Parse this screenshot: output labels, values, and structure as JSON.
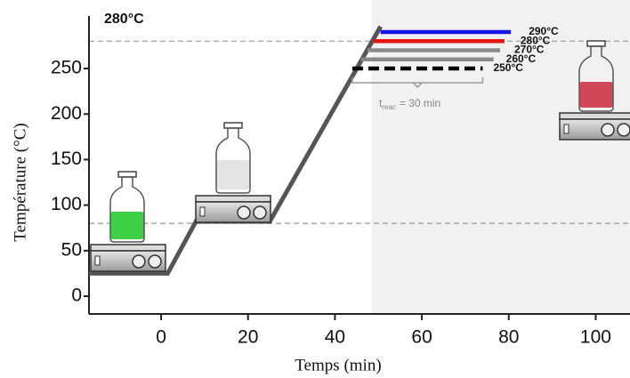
{
  "chart_data": {
    "type": "line",
    "annotation": "280°C",
    "x_label": "Temps (min)",
    "y_label": "Température (°C)",
    "xlim": [
      -16.6,
      107.9
    ],
    "ylim": [
      -19.5,
      325.2
    ],
    "xticks": [
      0,
      20,
      40,
      60,
      80,
      100
    ],
    "yticks": [
      0,
      50,
      100,
      150,
      200,
      250
    ],
    "shaded_xrange": [
      48.5,
      107.9
    ],
    "hlines": [
      280,
      80
    ],
    "profile": {
      "color": "#555555",
      "x": [
        -16.6,
        1.5,
        8,
        25,
        50.5
      ],
      "values": [
        25,
        25,
        82,
        82,
        296
      ]
    },
    "series": [
      {
        "name": "290°C",
        "color": "#1414e6",
        "dash": false,
        "x": [
          50.5,
          80.5
        ],
        "values": [
          290,
          290
        ]
      },
      {
        "name": "280°C",
        "color": "#e81414",
        "dash": false,
        "x": [
          49,
          79
        ],
        "values": [
          280,
          280
        ]
      },
      {
        "name": "270°C",
        "color": "#8a8a8a",
        "dash": false,
        "x": [
          47.5,
          78
        ],
        "values": [
          270,
          270
        ]
      },
      {
        "name": "260°C",
        "color": "#8a8a8a",
        "dash": false,
        "x": [
          46,
          76.5
        ],
        "values": [
          260,
          260
        ]
      },
      {
        "name": "250°C",
        "color": "#000000",
        "dash": true,
        "x": [
          44,
          74
        ],
        "values": [
          250,
          250
        ]
      }
    ],
    "bracket": {
      "x": [
        44,
        74
      ],
      "t": "t",
      "sub": "reac",
      "text": "= 30 min"
    }
  }
}
